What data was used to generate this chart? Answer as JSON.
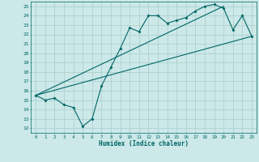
{
  "title": "",
  "xlabel": "Humidex (Indice chaleur)",
  "xlim": [
    -0.5,
    23.5
  ],
  "ylim": [
    11.5,
    25.5
  ],
  "yticks": [
    12,
    13,
    14,
    15,
    16,
    17,
    18,
    19,
    20,
    21,
    22,
    23,
    24,
    25
  ],
  "xticks": [
    0,
    1,
    2,
    3,
    4,
    5,
    6,
    7,
    8,
    9,
    10,
    11,
    12,
    13,
    14,
    15,
    16,
    17,
    18,
    19,
    20,
    21,
    22,
    23
  ],
  "bg_color": "#cce8e8",
  "grid_color": "#aacccc",
  "line_color": "#006666",
  "line1_x": [
    0,
    1,
    2,
    3,
    4,
    5,
    6,
    7,
    8,
    9,
    10,
    11,
    12,
    13,
    14,
    15,
    16,
    17,
    18,
    19,
    20,
    21,
    22,
    23
  ],
  "line1_y": [
    15.5,
    15.0,
    15.2,
    14.5,
    14.2,
    12.2,
    13.0,
    16.5,
    18.5,
    20.5,
    22.7,
    22.3,
    24.0,
    24.0,
    23.2,
    23.5,
    23.8,
    24.5,
    25.0,
    25.2,
    24.8,
    22.5,
    24.0,
    21.8
  ],
  "line2_x": [
    0,
    23
  ],
  "line2_y": [
    15.5,
    21.8
  ],
  "line3_x": [
    0,
    20
  ],
  "line3_y": [
    15.5,
    25.0
  ]
}
